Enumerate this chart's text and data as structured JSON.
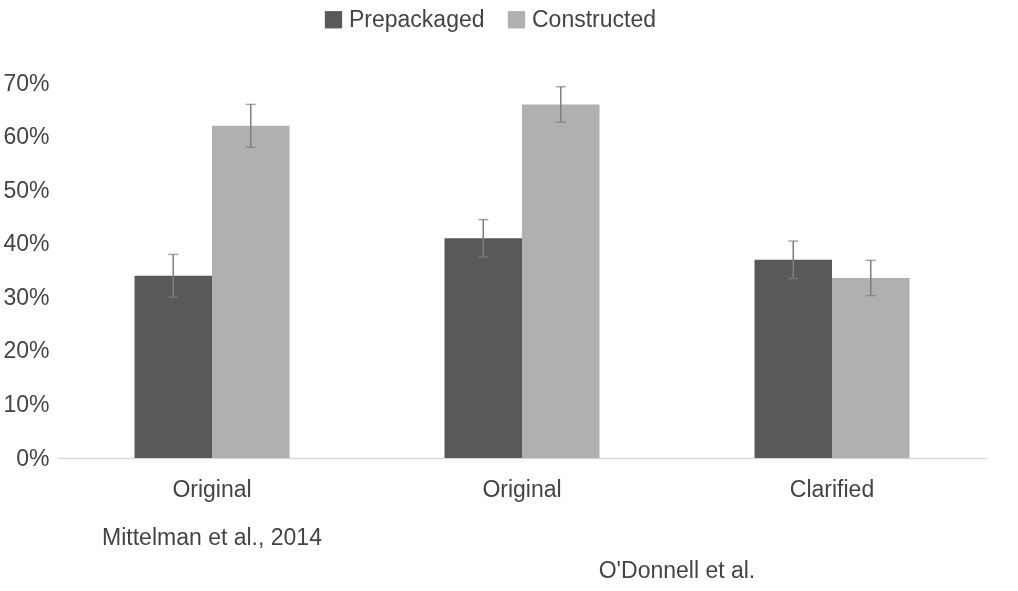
{
  "chart_data": {
    "type": "bar",
    "categories": [
      "Original",
      "Original",
      "Clarified"
    ],
    "series": [
      {
        "name": "Prepackaged",
        "color": "#595959",
        "values": [
          34,
          41,
          37
        ],
        "errors": [
          4,
          3.5,
          3.5
        ]
      },
      {
        "name": "Constructed",
        "color": "#b0b0b0",
        "values": [
          62,
          66,
          33.6
        ],
        "errors": [
          4,
          3.3,
          3.3
        ]
      }
    ],
    "ylim": [
      0,
      70
    ],
    "yticks": [
      {
        "value": 0,
        "label": "0%"
      },
      {
        "value": 10,
        "label": "10%"
      },
      {
        "value": 20,
        "label": "20%"
      },
      {
        "value": 30,
        "label": "30%"
      },
      {
        "value": 40,
        "label": "40%"
      },
      {
        "value": 50,
        "label": "50%"
      },
      {
        "value": 60,
        "label": "60%"
      },
      {
        "value": 70,
        "label": "70%"
      }
    ],
    "annotations": [
      "Mittelman et al., 2014",
      "O'Donnell et al."
    ],
    "legend": "top",
    "grid": false
  }
}
